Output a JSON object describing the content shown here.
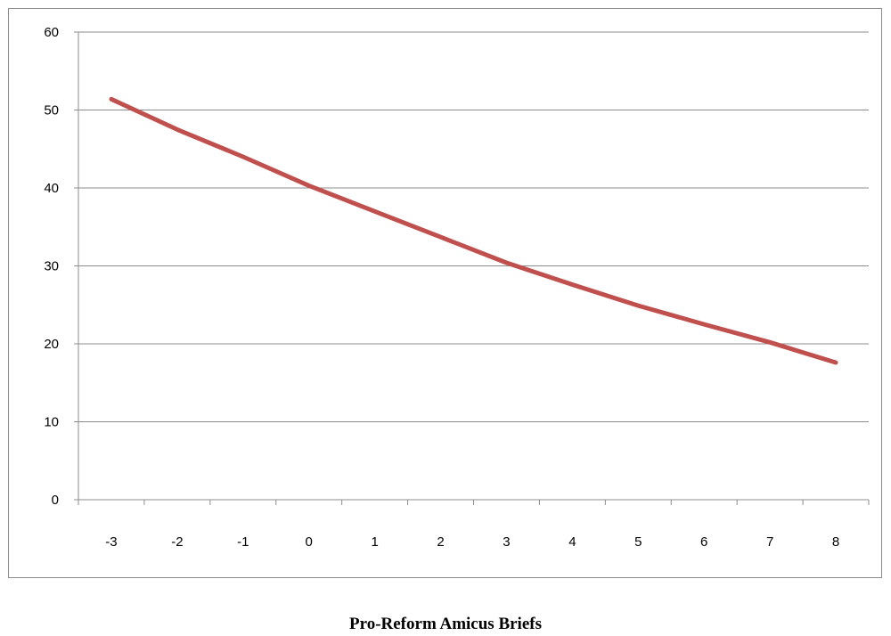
{
  "chart_data": {
    "type": "line",
    "title": "",
    "xlabel": "Pro-Reform Amicus Briefs",
    "ylabel": "",
    "categories": [
      "-3",
      "-2",
      "-1",
      "0",
      "1",
      "2",
      "3",
      "4",
      "5",
      "6",
      "7",
      "8"
    ],
    "series": [
      {
        "color": "#c0504d",
        "values": [
          51.4,
          47.5,
          44.0,
          40.3,
          37.0,
          33.7,
          30.4,
          27.6,
          24.9,
          22.5,
          20.2,
          17.6
        ]
      }
    ],
    "y_ticks": [
      "0",
      "10",
      "20",
      "30",
      "40",
      "50",
      "60"
    ],
    "ylim": [
      0,
      60
    ],
    "grid": "horizontal",
    "legend": "none"
  }
}
